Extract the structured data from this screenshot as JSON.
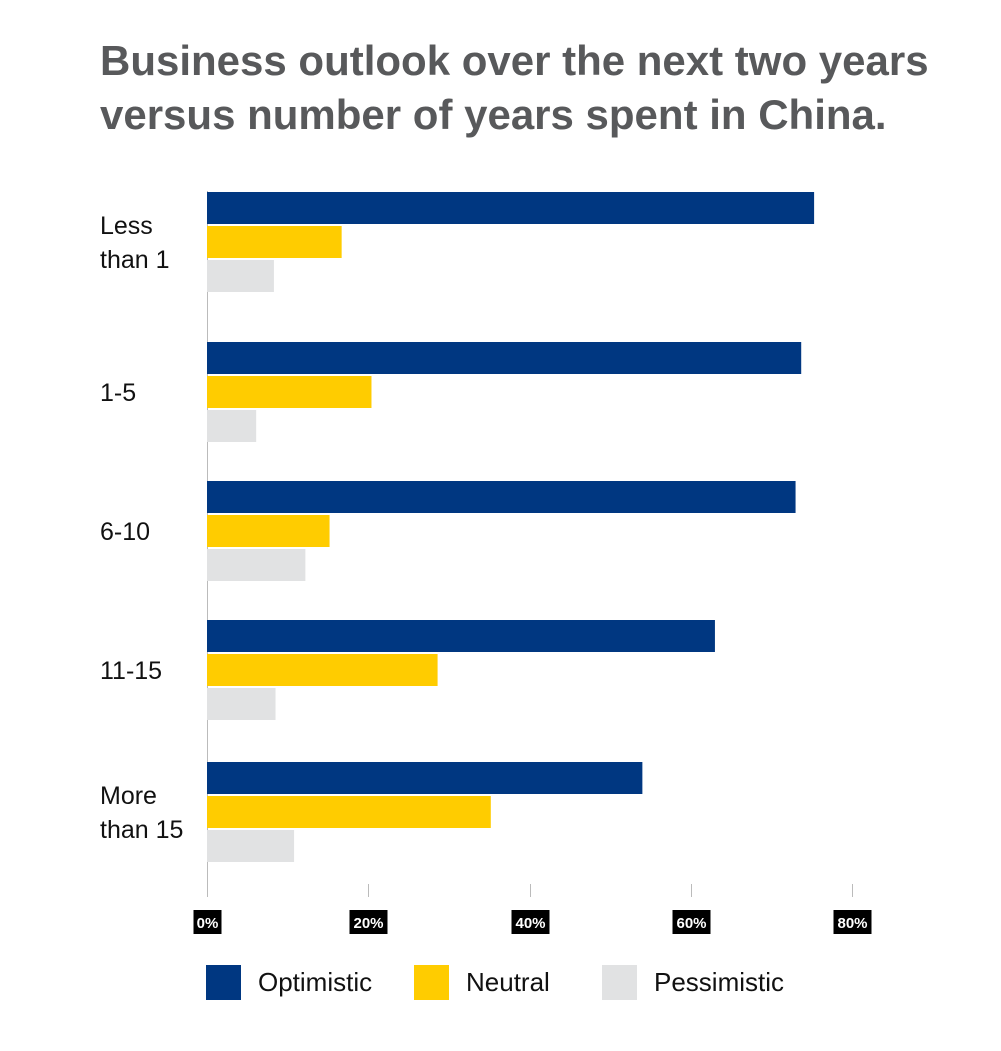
{
  "chart_data": {
    "type": "bar",
    "orientation": "horizontal",
    "title_lines": [
      "Business outlook over the next two years",
      "versus number of years spent in China."
    ],
    "categories": [
      [
        "Less",
        "than 1"
      ],
      [
        "1-5"
      ],
      [
        "6-10"
      ],
      [
        "11-15"
      ],
      [
        "More",
        "than 15"
      ]
    ],
    "series": [
      {
        "name": "Optimistic",
        "color": "#003781",
        "values": [
          75.3,
          73.7,
          73.0,
          63.0,
          54.0
        ]
      },
      {
        "name": "Neutral",
        "color": "#ffcc00",
        "values": [
          16.7,
          20.4,
          15.2,
          28.6,
          35.2
        ]
      },
      {
        "name": "Pessimistic",
        "color": "#e1e2e3",
        "values": [
          8.3,
          6.1,
          12.2,
          8.5,
          10.8
        ]
      }
    ],
    "xticks": [
      "0%",
      "20%",
      "40%",
      "60%",
      "80%"
    ],
    "xlim": [
      0,
      80
    ],
    "grid": false,
    "legend_position": "bottom"
  }
}
